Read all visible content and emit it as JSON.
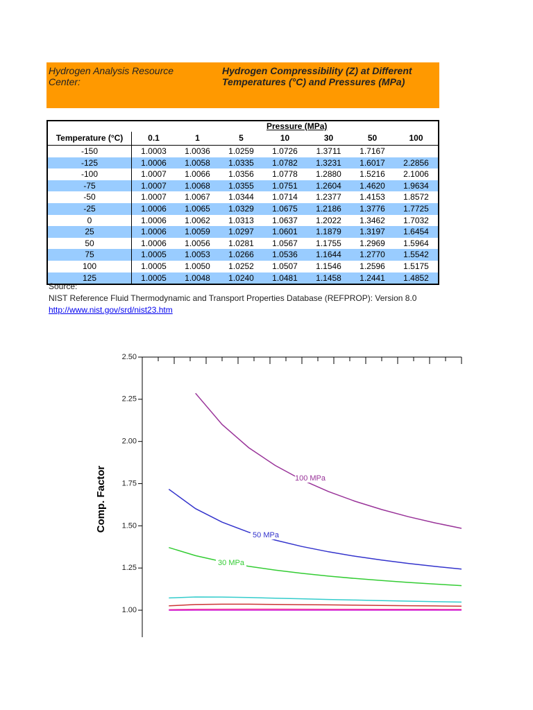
{
  "header": {
    "left": "Hydrogen Analysis Resource Center:",
    "right": "Hydrogen Compressibility (Z) at Different Temperatures (°C) and Pressures (MPa)"
  },
  "table": {
    "group_header": "Pressure (MPa)",
    "columns": [
      "Temperature (°C)",
      "0.1",
      "1",
      "5",
      "10",
      "30",
      "50",
      "100"
    ],
    "rows": [
      [
        "-150",
        "1.0003",
        "1.0036",
        "1.0259",
        "1.0726",
        "1.3711",
        "1.7167"
      ],
      [
        "-125",
        "1.0006",
        "1.0058",
        "1.0335",
        "1.0782",
        "1.3231",
        "1.6017",
        "2.2856"
      ],
      [
        "-100",
        "1.0007",
        "1.0066",
        "1.0356",
        "1.0778",
        "1.2880",
        "1.5216",
        "2.1006"
      ],
      [
        "-75",
        "1.0007",
        "1.0068",
        "1.0355",
        "1.0751",
        "1.2604",
        "1.4620",
        "1.9634"
      ],
      [
        "-50",
        "1.0007",
        "1.0067",
        "1.0344",
        "1.0714",
        "1.2377",
        "1.4153",
        "1.8572"
      ],
      [
        "-25",
        "1.0006",
        "1.0065",
        "1.0329",
        "1.0675",
        "1.2186",
        "1.3776",
        "1.7725"
      ],
      [
        "0",
        "1.0006",
        "1.0062",
        "1.0313",
        "1.0637",
        "1.2022",
        "1.3462",
        "1.7032"
      ],
      [
        "25",
        "1.0006",
        "1.0059",
        "1.0297",
        "1.0601",
        "1.1879",
        "1.3197",
        "1.6454"
      ],
      [
        "50",
        "1.0006",
        "1.0056",
        "1.0281",
        "1.0567",
        "1.1755",
        "1.2969",
        "1.5964"
      ],
      [
        "75",
        "1.0005",
        "1.0053",
        "1.0266",
        "1.0536",
        "1.1644",
        "1.2770",
        "1.5542"
      ],
      [
        "100",
        "1.0005",
        "1.0050",
        "1.0252",
        "1.0507",
        "1.1546",
        "1.2596",
        "1.5175"
      ],
      [
        "125",
        "1.0005",
        "1.0048",
        "1.0240",
        "1.0481",
        "1.1458",
        "1.2441",
        "1.4852"
      ]
    ]
  },
  "source": {
    "label": "Source:",
    "text": "NIST Reference Fluid Thermodynamic and Transport Properties Database (REFPROP): Version 8.0",
    "link": "http://www.nist.gov/srd/nist23.htm"
  },
  "chart_data": {
    "type": "line",
    "y_label": "Comp. Factor",
    "x": [
      -150,
      -125,
      -100,
      -75,
      -50,
      -25,
      0,
      25,
      50,
      75,
      100,
      125
    ],
    "xlim": [
      -175,
      125
    ],
    "xticks": [
      -175,
      -160,
      -145,
      -130,
      -115,
      -100,
      -85,
      -70,
      -55,
      -40,
      -25,
      -10,
      5,
      20,
      35,
      50,
      65,
      80,
      95,
      110,
      125
    ],
    "ylim": [
      0.84,
      2.5
    ],
    "yticks": [
      {
        "value": 1,
        "label": "1.00"
      },
      {
        "value": 1.25,
        "label": "1.25"
      },
      {
        "value": 1.5,
        "label": "1.50"
      },
      {
        "value": 1.75,
        "label": "1.75"
      },
      {
        "value": 2,
        "label": "2.00"
      },
      {
        "value": 2.25,
        "label": "2.25"
      },
      {
        "value": 2.5,
        "label": "2.50"
      }
    ],
    "series": [
      {
        "name": "100 MPa",
        "color": "#993399",
        "values": [
          null,
          2.2856,
          2.1006,
          1.9634,
          1.8572,
          1.7725,
          1.7032,
          1.6454,
          1.5964,
          1.5542,
          1.5175,
          1.4852
        ]
      },
      {
        "name": "50 MPa",
        "color": "#3333cc",
        "values": [
          1.7167,
          1.6017,
          1.5216,
          1.462,
          1.4153,
          1.3776,
          1.3462,
          1.3197,
          1.2969,
          1.277,
          1.2596,
          1.2441
        ]
      },
      {
        "name": "30 MPa",
        "color": "#33cc33",
        "values": [
          1.3711,
          1.3231,
          1.288,
          1.2604,
          1.2377,
          1.2186,
          1.2022,
          1.1879,
          1.1755,
          1.1644,
          1.1546,
          1.1458
        ]
      },
      {
        "color": "#33cccc",
        "values": [
          1.0726,
          1.0782,
          1.0778,
          1.0751,
          1.0714,
          1.0675,
          1.0637,
          1.0601,
          1.0567,
          1.0536,
          1.0507,
          1.0481
        ]
      },
      {
        "color": "#cc3333",
        "values": [
          1.0259,
          1.0335,
          1.0356,
          1.0355,
          1.0344,
          1.0329,
          1.0313,
          1.0297,
          1.0281,
          1.0266,
          1.0252,
          1.024
        ]
      },
      {
        "color": "#ff6699",
        "values": [
          1.0036,
          1.0058,
          1.0066,
          1.0068,
          1.0067,
          1.0065,
          1.0062,
          1.0059,
          1.0056,
          1.0053,
          1.005,
          1.0048
        ]
      },
      {
        "color": "#cc00cc",
        "values": [
          1.0003,
          1.0006,
          1.0007,
          1.0007,
          1.0007,
          1.0006,
          1.0006,
          1.0006,
          1.0006,
          1.0005,
          1.0005,
          1.0005
        ]
      }
    ]
  }
}
